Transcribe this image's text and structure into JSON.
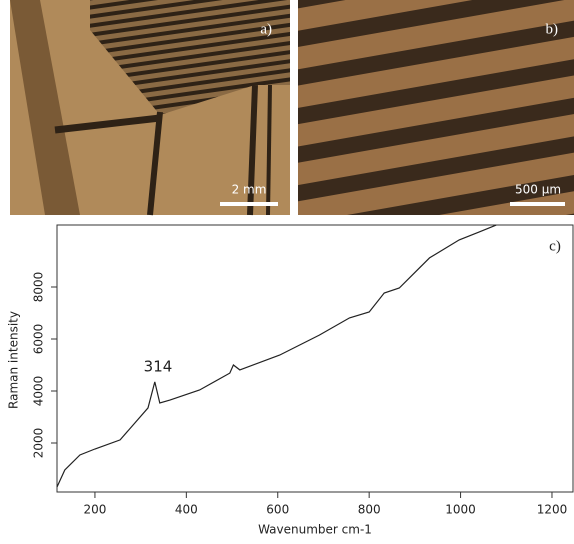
{
  "panels": [
    {
      "label": "a)",
      "scale": "2 mm"
    },
    {
      "label": "b)",
      "scale": "500 µm"
    }
  ],
  "chart_data": {
    "type": "line",
    "panel_label": "c)",
    "x_label": "Wavenumber  cm-1",
    "y_label": "Raman intensity",
    "annotation": "314",
    "color": "#222222",
    "x": [
      117,
      134,
      167,
      200,
      255,
      316,
      331,
      342,
      364,
      429,
      495,
      503,
      517,
      604,
      691,
      757,
      800,
      833,
      866,
      932,
      997,
      1041,
      1078
    ],
    "values": [
      308,
      960,
      1540,
      1770,
      2120,
      3350,
      4350,
      3540,
      3650,
      4040,
      4690,
      5000,
      4810,
      5380,
      6150,
      6810,
      7040,
      7770,
      7960,
      9120,
      9810,
      10120,
      10380
    ],
    "xlim": [
      117,
      1246
    ],
    "ylim": [
      115,
      10385
    ],
    "xticks": [
      200,
      400,
      600,
      800,
      1000,
      1200
    ],
    "yticks": [
      2000,
      4000,
      6000,
      8000
    ]
  }
}
